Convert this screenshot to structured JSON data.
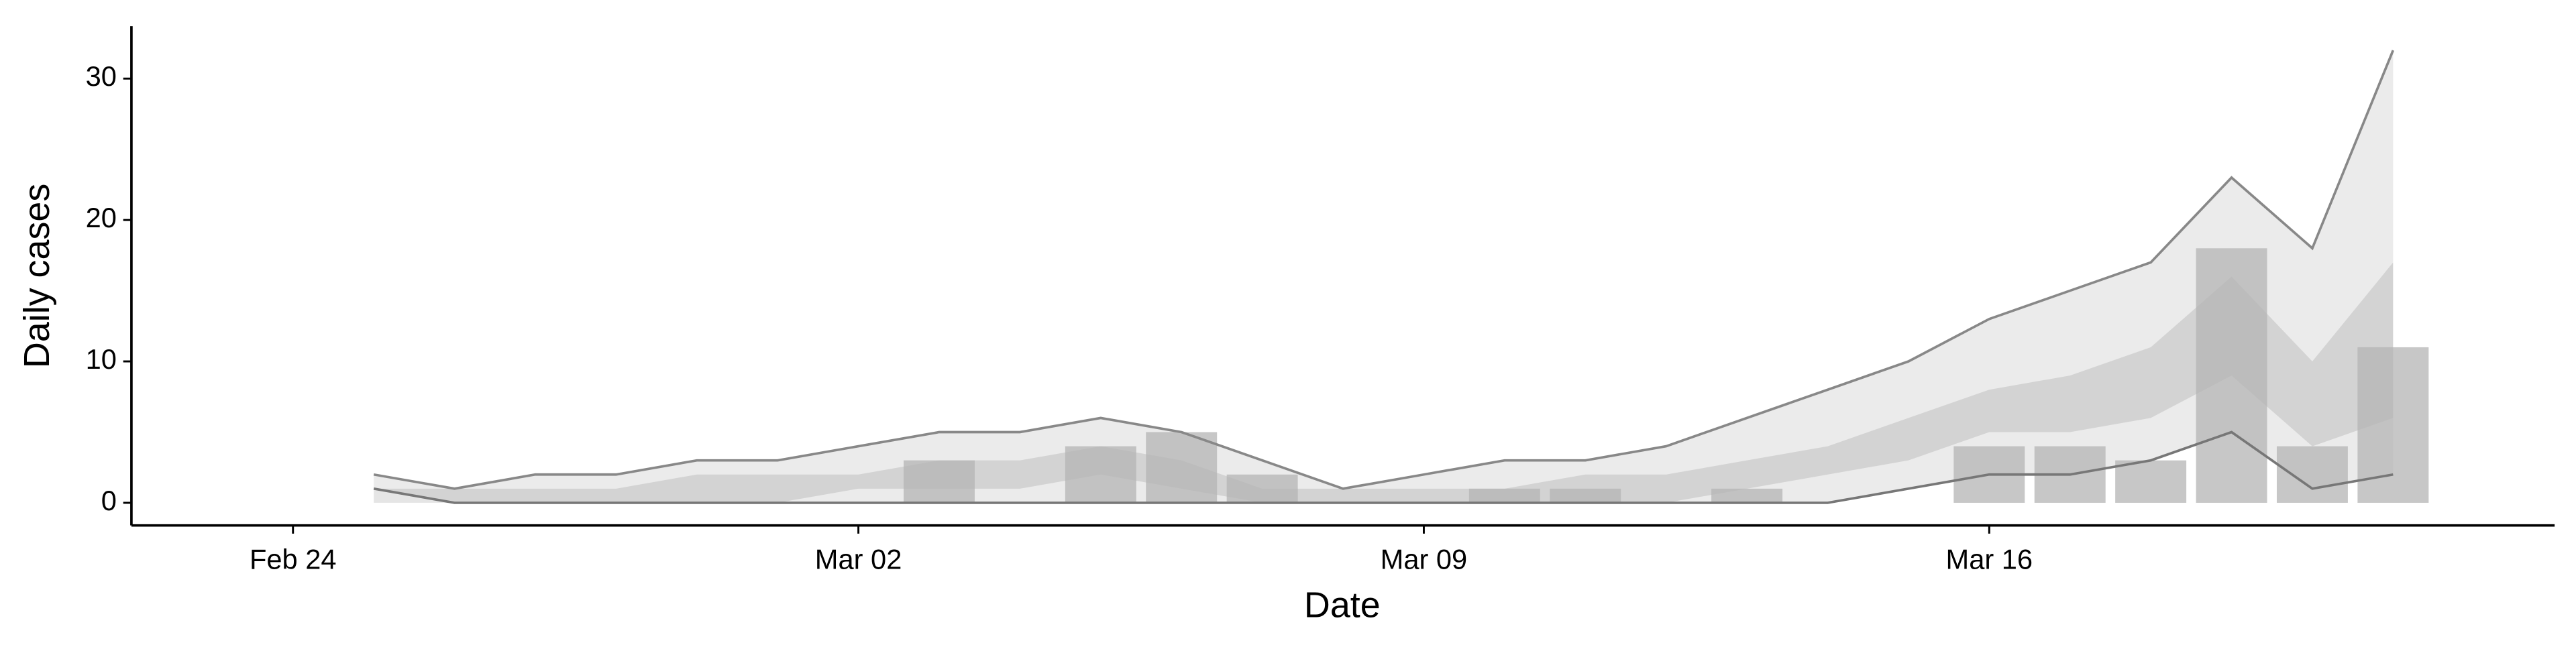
{
  "chart_data": {
    "type": "bar",
    "x_label": "Date",
    "y_label": "Daily cases",
    "x": [
      "Feb 25",
      "Feb 26",
      "Feb 27",
      "Feb 28",
      "Feb 29",
      "Mar 01",
      "Mar 02",
      "Mar 03",
      "Mar 04",
      "Mar 05",
      "Mar 06",
      "Mar 07",
      "Mar 08",
      "Mar 09",
      "Mar 10",
      "Mar 11",
      "Mar 12",
      "Mar 13",
      "Mar 14",
      "Mar 15",
      "Mar 16",
      "Mar 17",
      "Mar 18",
      "Mar 19",
      "Mar 20",
      "Mar 21"
    ],
    "values": [
      0,
      0,
      0,
      0,
      0,
      0,
      0,
      3,
      0,
      4,
      5,
      2,
      0,
      0,
      1,
      1,
      0,
      1,
      0,
      0,
      4,
      4,
      3,
      18,
      4,
      11
    ],
    "upper": [
      2,
      1,
      2,
      2,
      3,
      3,
      4,
      5,
      5,
      6,
      5,
      3,
      1,
      2,
      3,
      3,
      4,
      6,
      8,
      10,
      13,
      15,
      17,
      23,
      18,
      32
    ],
    "lower": [
      1,
      0,
      0,
      0,
      0,
      0,
      0,
      0,
      0,
      0,
      0,
      0,
      0,
      0,
      0,
      0,
      0,
      0,
      0,
      1,
      2,
      2,
      3,
      5,
      1,
      2
    ],
    "band_high": [
      1,
      1,
      1,
      1,
      2,
      2,
      2,
      3,
      3,
      4,
      3,
      1,
      1,
      1,
      1,
      2,
      2,
      3,
      4,
      6,
      8,
      9,
      11,
      16,
      10,
      17
    ],
    "band_low": [
      0,
      0,
      0,
      0,
      0,
      0,
      1,
      1,
      1,
      2,
      1,
      0,
      0,
      0,
      0,
      0,
      0,
      1,
      2,
      3,
      5,
      5,
      6,
      9,
      4,
      6
    ],
    "color": "#b4b4b4",
    "xlim": [
      "Feb 22",
      "Mar 23"
    ],
    "xticks": [
      "Feb 24",
      "Mar 02",
      "Mar 09",
      "Mar 16"
    ],
    "ylim": [
      -1.6,
      33.7
    ],
    "yticks": [
      0,
      10,
      20,
      30
    ]
  }
}
